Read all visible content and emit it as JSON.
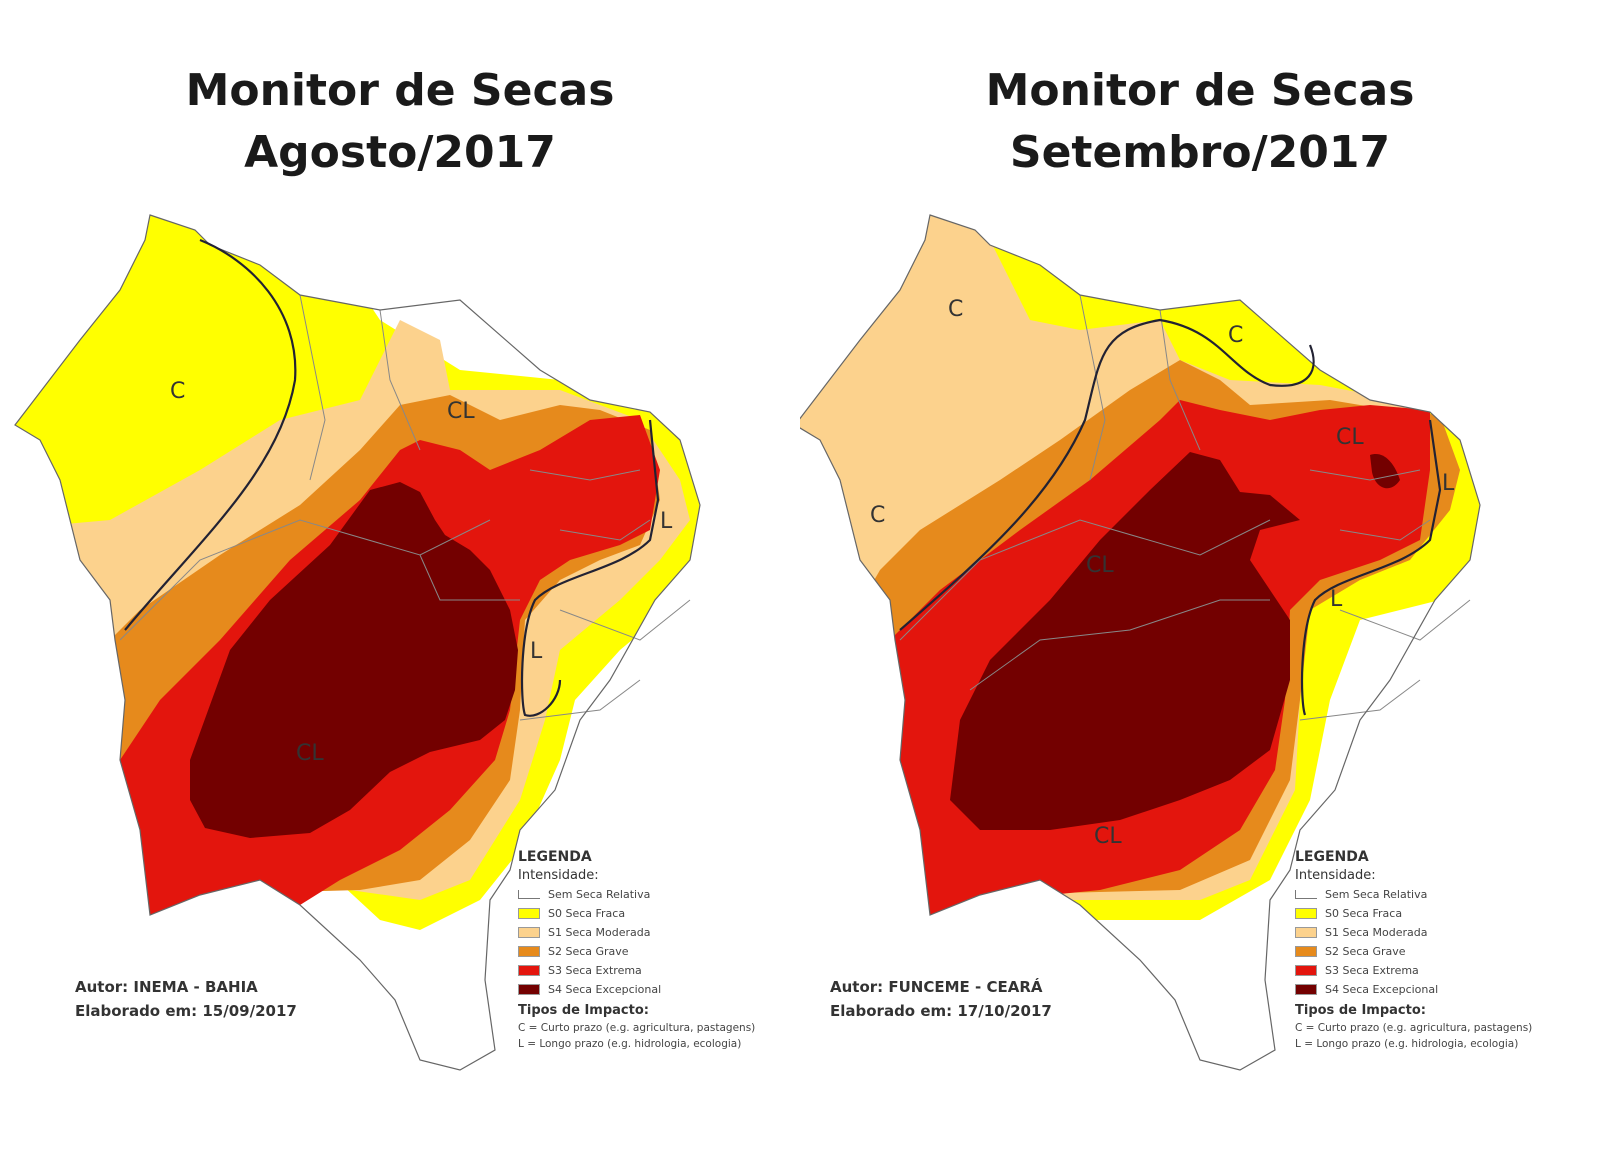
{
  "maps": [
    {
      "title_line1": "Monitor de Secas",
      "title_line2": "Agosto/2017",
      "author": "Autor: INEMA - BAHIA",
      "elaborated": "Elaborado em: 15/09/2017",
      "impact_labels": [
        "C",
        "CL",
        "L",
        "L",
        "CL"
      ]
    },
    {
      "title_line1": "Monitor de Secas",
      "title_line2": "Setembro/2017",
      "author": "Autor: FUNCEME - CEARÁ",
      "elaborated": "Elaborado em: 17/10/2017",
      "impact_labels": [
        "C",
        "C",
        "C",
        "CL",
        "L",
        "L",
        "CL",
        "CL"
      ]
    }
  ],
  "legend": {
    "heading": "LEGENDA",
    "intensity_label": "Intensidade:",
    "items": [
      {
        "label": "Sem Seca Relativa",
        "color": "#ffffff"
      },
      {
        "label": "S0 Seca Fraca",
        "color": "#ffff00"
      },
      {
        "label": "S1 Seca Moderada",
        "color": "#fcd28d"
      },
      {
        "label": "S2 Seca Grave",
        "color": "#e68a1c"
      },
      {
        "label": "S3 Seca Extrema",
        "color": "#e3150d"
      },
      {
        "label": "S4 Seca Excepcional",
        "color": "#730000"
      }
    ],
    "impact_heading": "Tipos de Impacto:",
    "impact_short": "C = Curto prazo (e.g. agricultura, pastagens)",
    "impact_long": "L = Longo prazo (e.g. hidrologia, ecologia)"
  }
}
